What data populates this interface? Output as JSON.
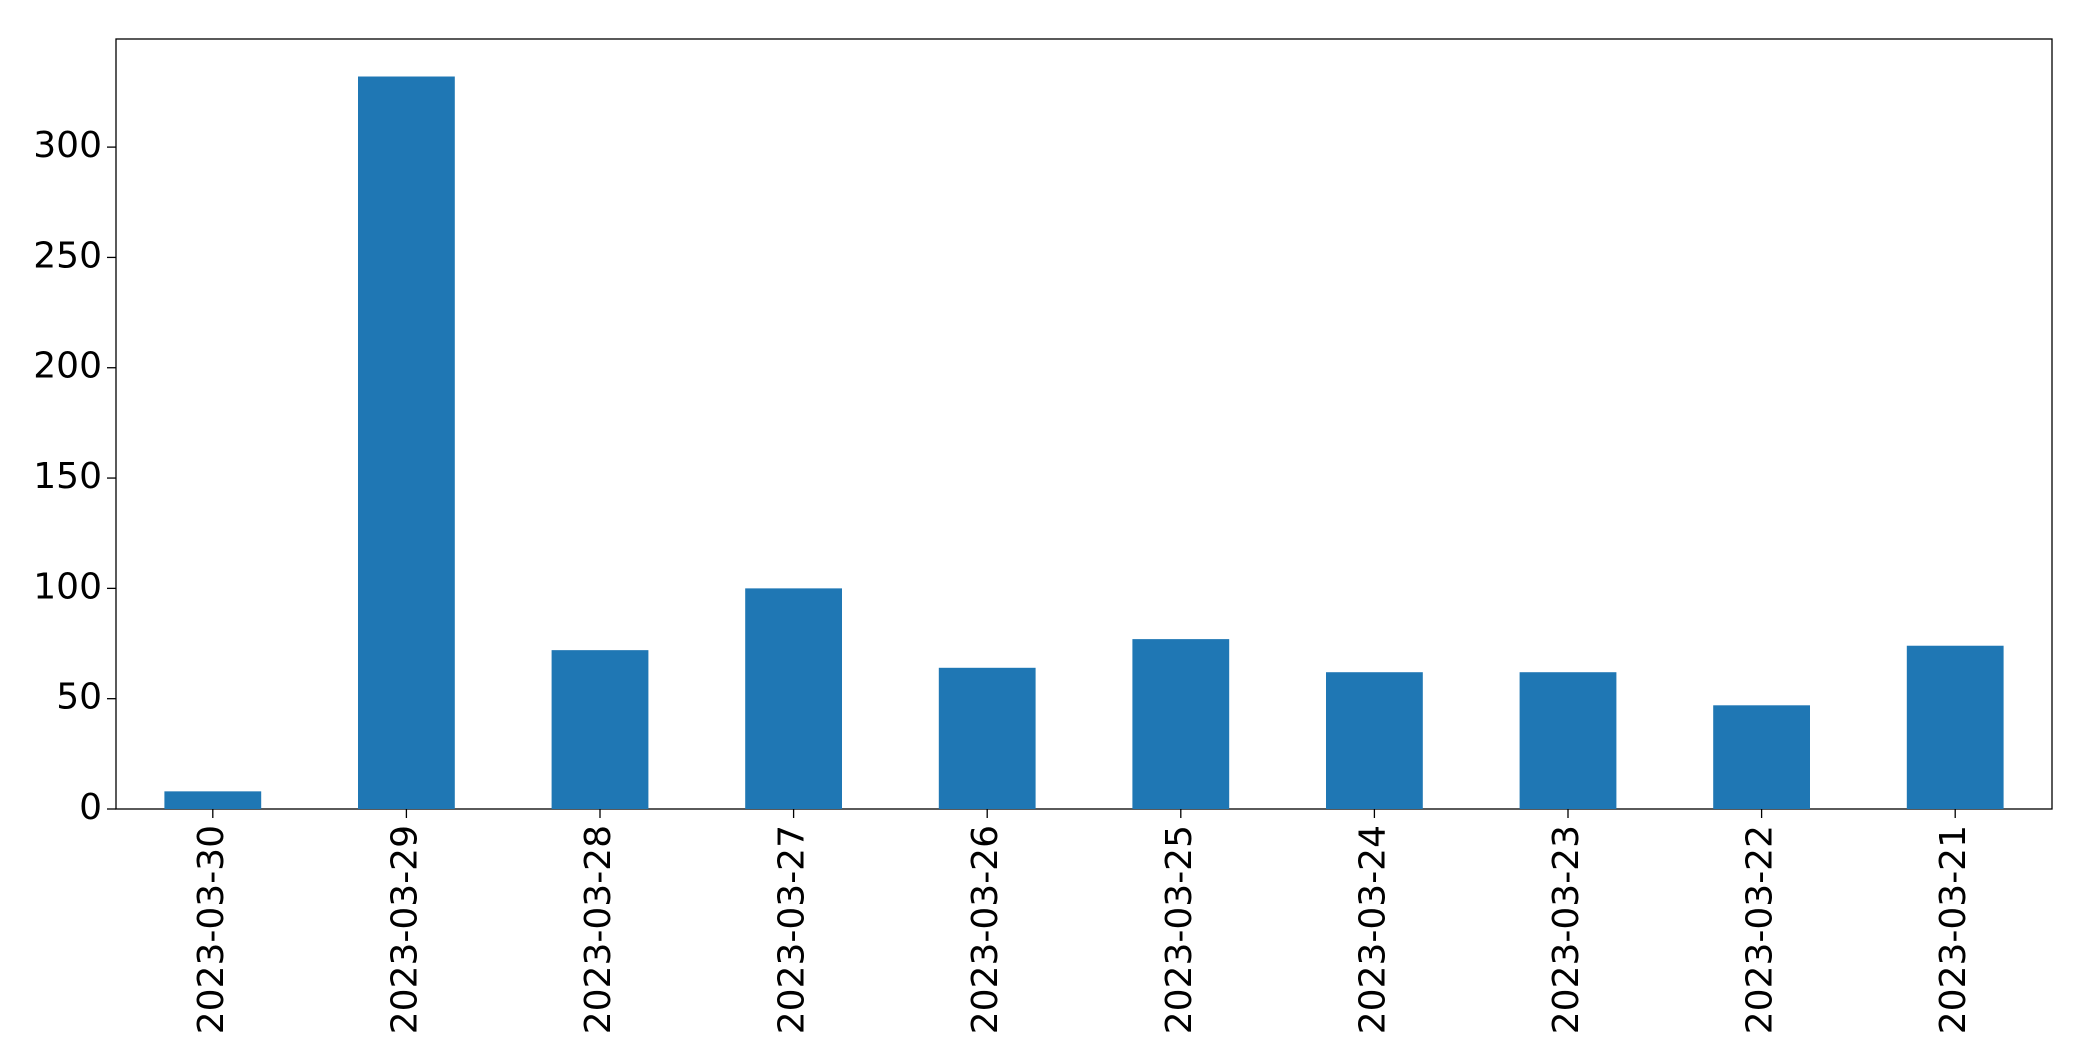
{
  "chart_data": {
    "type": "bar",
    "categories": [
      "2023-03-30",
      "2023-03-29",
      "2023-03-28",
      "2023-03-27",
      "2023-03-26",
      "2023-03-25",
      "2023-03-24",
      "2023-03-23",
      "2023-03-22",
      "2023-03-21"
    ],
    "values": [
      8,
      332,
      72,
      100,
      64,
      77,
      62,
      62,
      47,
      74
    ],
    "color": "#1f77b4",
    "ylim": [
      0,
      349
    ],
    "yticks": [
      0,
      50,
      100,
      150,
      200,
      250,
      300
    ],
    "grid": false
  }
}
